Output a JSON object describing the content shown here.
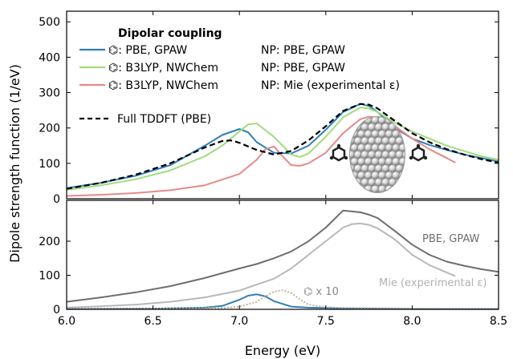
{
  "chart_data": {
    "type": "line",
    "xlabel": "Energy (eV)",
    "ylabel": "Dipole strength function (1/eV)",
    "xlim": [
      6.0,
      8.5
    ],
    "x_ticks": [
      "6.0",
      "6.5",
      "7.0",
      "7.5",
      "8.0",
      "8.5"
    ],
    "panels": [
      {
        "ylim": [
          0,
          530
        ],
        "y_ticks": [
          "0",
          "100",
          "200",
          "300",
          "400",
          "500"
        ],
        "legend_title": "Dipolar coupling",
        "legend_position": "top-left",
        "series": [
          {
            "name": "⌬: PBE, GPAW",
            "np_label": "NP: PBE, GPAW",
            "color": "#2f7fb8",
            "style": "solid",
            "x": [
              6.0,
              6.2,
              6.4,
              6.6,
              6.8,
              6.9,
              7.0,
              7.05,
              7.1,
              7.2,
              7.3,
              7.4,
              7.5,
              7.6,
              7.7,
              7.75,
              7.8,
              7.9,
              8.0,
              8.1,
              8.2,
              8.3,
              8.4,
              8.5
            ],
            "y": [
              30,
              45,
              65,
              95,
              150,
              180,
              197,
              188,
              160,
              130,
              128,
              150,
              195,
              245,
              268,
              262,
              245,
              200,
              170,
              152,
              138,
              125,
              115,
              105
            ]
          },
          {
            "name": "⌬: B3LYP, NWChem",
            "np_label": "NP: PBE, GPAW",
            "color": "#9fdc7c",
            "style": "solid",
            "x": [
              6.0,
              6.2,
              6.4,
              6.6,
              6.8,
              6.9,
              7.0,
              7.05,
              7.1,
              7.2,
              7.3,
              7.35,
              7.4,
              7.5,
              7.6,
              7.7,
              7.75,
              7.8,
              7.9,
              8.0,
              8.1,
              8.2,
              8.3,
              8.4,
              8.5
            ],
            "y": [
              25,
              38,
              55,
              80,
              120,
              150,
              190,
              210,
              213,
              175,
              125,
              118,
              128,
              175,
              230,
              258,
              255,
              245,
              215,
              190,
              170,
              150,
              135,
              120,
              110
            ]
          },
          {
            "name": "⌬: B3LYP, NWChem",
            "np_label": "NP: Mie (experimental ε)",
            "color": "#e58a8a",
            "style": "solid",
            "x": [
              6.0,
              6.2,
              6.4,
              6.6,
              6.8,
              7.0,
              7.1,
              7.15,
              7.2,
              7.25,
              7.3,
              7.35,
              7.4,
              7.5,
              7.6,
              7.7,
              7.75,
              7.8,
              7.9,
              8.0,
              8.1,
              8.2,
              8.25
            ],
            "y": [
              8,
              11,
              16,
              24,
              38,
              70,
              110,
              140,
              148,
              120,
              95,
              93,
              100,
              130,
              185,
              225,
              232,
              230,
              205,
              170,
              140,
              115,
              102
            ]
          },
          {
            "name": "Full TDDFT (PBE)",
            "color": "#000000",
            "style": "dashed",
            "x": [
              6.0,
              6.2,
              6.4,
              6.6,
              6.8,
              6.9,
              6.95,
              7.0,
              7.1,
              7.2,
              7.3,
              7.4,
              7.5,
              7.6,
              7.7,
              7.75,
              7.8,
              7.9,
              8.0,
              8.1,
              8.2,
              8.3,
              8.4,
              8.5
            ],
            "y": [
              28,
              45,
              68,
              100,
              145,
              163,
              165,
              158,
              138,
              125,
              135,
              165,
              205,
              248,
              268,
              266,
              255,
              220,
              185,
              160,
              140,
              125,
              112,
              102
            ]
          }
        ],
        "inset_image": "nanoparticle-with-two-molecules"
      },
      {
        "ylim": [
          0,
          320
        ],
        "y_ticks": [
          "0",
          "100",
          "200"
        ],
        "series": [
          {
            "name": "PBE, GPAW",
            "color": "#6e6e6e",
            "style": "solid",
            "x": [
              6.0,
              6.2,
              6.4,
              6.6,
              6.8,
              7.0,
              7.1,
              7.2,
              7.3,
              7.4,
              7.5,
              7.6,
              7.7,
              7.75,
              7.8,
              7.9,
              8.0,
              8.1,
              8.2,
              8.3,
              8.4,
              8.5
            ],
            "y": [
              22,
              35,
              50,
              68,
              92,
              120,
              133,
              150,
              170,
              200,
              240,
              290,
              285,
              278,
              268,
              230,
              190,
              160,
              140,
              128,
              118,
              110
            ]
          },
          {
            "name": "Mie (experimental ε)",
            "color": "#b8b8b8",
            "style": "solid",
            "x": [
              6.0,
              6.2,
              6.4,
              6.6,
              6.8,
              7.0,
              7.2,
              7.3,
              7.4,
              7.5,
              7.6,
              7.65,
              7.7,
              7.75,
              7.8,
              7.9,
              8.0,
              8.1,
              8.2,
              8.25
            ],
            "y": [
              5,
              9,
              14,
              22,
              35,
              55,
              90,
              120,
              160,
              200,
              240,
              250,
              252,
              248,
              238,
              205,
              160,
              130,
              108,
              98
            ]
          },
          {
            "name": "⌬ PBE",
            "color": "#2f7fb8",
            "style": "solid",
            "x": [
              6.0,
              6.5,
              6.8,
              6.9,
              7.0,
              7.05,
              7.1,
              7.15,
              7.2,
              7.3,
              7.4,
              7.5,
              7.6,
              7.8,
              8.0,
              8.5
            ],
            "y": [
              1,
              2,
              5,
              10,
              28,
              40,
              44,
              38,
              24,
              8,
              5,
              4,
              3,
              2,
              1,
              1
            ]
          },
          {
            "name": "⌬ B3LYP",
            "color": "#c8b494",
            "style": "dotted",
            "x": [
              6.0,
              6.5,
              6.9,
              7.0,
              7.1,
              7.15,
              7.2,
              7.25,
              7.3,
              7.35,
              7.4,
              7.5,
              7.6,
              7.8,
              8.0,
              8.5
            ],
            "y": [
              1,
              2,
              4,
              8,
              22,
              38,
              52,
              56,
              48,
              30,
              14,
              6,
              4,
              3,
              2,
              1
            ]
          }
        ],
        "annotations": {
          "pbe_gpaw": "PBE, GPAW",
          "mie": "Mie (experimental ε)",
          "molecule_x10": "⌬ x 10"
        }
      }
    ]
  }
}
